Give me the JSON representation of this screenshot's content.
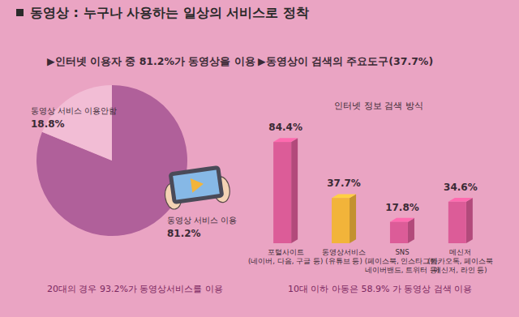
{
  "header": {
    "title": "동영상 : 누구나 사용하는 일상의 서비스로 정착"
  },
  "chart_data": [
    {
      "type": "pie",
      "title": "▶인터넷 이용자 중 81.2%가 동영상을 이용",
      "categories": [
        "동영상 서비스 이용",
        "동영상 서비스 이용안함"
      ],
      "values": [
        81.2,
        18.8
      ],
      "value_labels": [
        "81.2%",
        "18.8%"
      ],
      "colors": [
        "#b0609a",
        "#f2bdd5"
      ],
      "data_labels": true,
      "annotations": [
        "20대의 경우 93.2%가 동영상서비스를 이용"
      ]
    },
    {
      "type": "bar",
      "title": "▶동영상이 검색의 주요도구(37.7%)",
      "subtitle": "인터넷 정보 검색 방식",
      "categories": [
        "포털사이트\n(네이버, 다음, 구글 등)",
        "동영상서비스\n(유튜브 등)",
        "SNS\n(페이스북, 인스타그램,\n네이버밴드, 트위터 등)",
        "메신저\n(카카오톡, 페이스북\n메신저, 라인 등)"
      ],
      "values": [
        84.4,
        37.7,
        17.8,
        34.6
      ],
      "value_labels": [
        "84.4%",
        "37.7%",
        "17.8%",
        "34.6%"
      ],
      "colors": [
        "#dc5c98",
        "#f2b43a",
        "#dc5c98",
        "#dc5c98"
      ],
      "ylim": [
        0,
        100
      ],
      "tick_labels": false,
      "data_labels": true,
      "annotations": [
        "10대 이하 아동은 58.9% 가 동영상 검색 이용"
      ]
    }
  ]
}
